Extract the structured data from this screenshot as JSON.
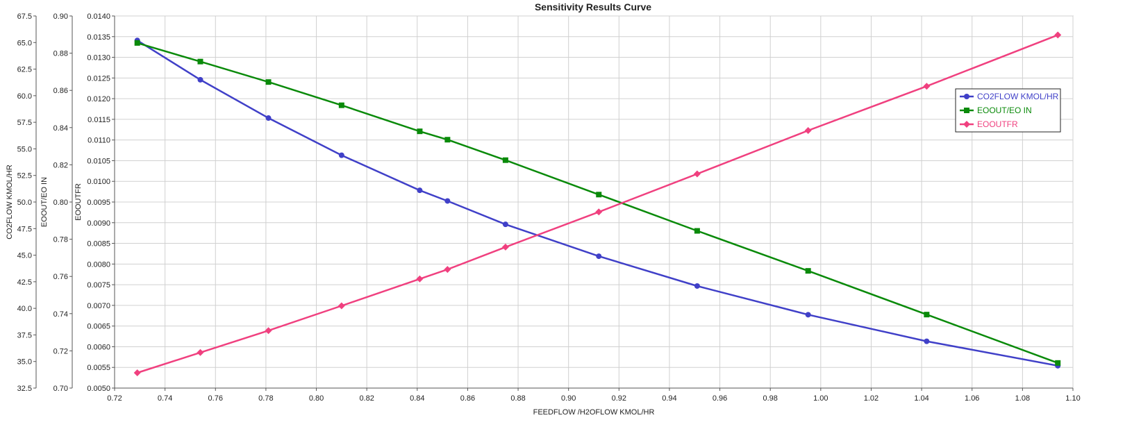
{
  "chart_data": {
    "type": "line",
    "title": "Sensitivity Results Curve",
    "xlabel": "FEEDFLOW /H2OFLOW KMOL/HR",
    "xlim": [
      0.72,
      1.1
    ],
    "x_ticks": [
      "0.72",
      "0.74",
      "0.76",
      "0.78",
      "0.80",
      "0.82",
      "0.84",
      "0.86",
      "0.88",
      "0.90",
      "0.92",
      "0.94",
      "0.96",
      "0.98",
      "1.00",
      "1.02",
      "1.04",
      "1.06",
      "1.08",
      "1.10"
    ],
    "x": [
      0.729,
      0.754,
      0.781,
      0.81,
      0.841,
      0.852,
      0.875,
      0.912,
      0.951,
      0.995,
      1.042,
      1.094
    ],
    "grid": true,
    "legend_position": "right",
    "axes": [
      {
        "id": "co2",
        "label": "CO2FLOW KMOL/HR",
        "ylim": [
          32.5,
          67.5
        ],
        "ticks": [
          "32.5",
          "35.0",
          "37.5",
          "40.0",
          "42.5",
          "45.0",
          "47.5",
          "50.0",
          "52.5",
          "55.0",
          "57.5",
          "60.0",
          "62.5",
          "65.0",
          "67.5"
        ]
      },
      {
        "id": "eoratio",
        "label": "EOOUT/EO IN",
        "ylim": [
          0.7,
          0.9
        ],
        "ticks": [
          "0.70",
          "0.72",
          "0.74",
          "0.76",
          "0.78",
          "0.80",
          "0.82",
          "0.84",
          "0.86",
          "0.88",
          "0.90"
        ]
      },
      {
        "id": "eooutfr",
        "label": "EOOUTFR",
        "ylim": [
          0.005,
          0.014
        ],
        "ticks": [
          "0.0050",
          "0.0055",
          "0.0060",
          "0.0065",
          "0.0070",
          "0.0075",
          "0.0080",
          "0.0085",
          "0.0090",
          "0.0095",
          "0.0100",
          "0.0105",
          "0.0110",
          "0.0115",
          "0.0120",
          "0.0125",
          "0.0130",
          "0.0135",
          "0.0140"
        ]
      }
    ],
    "series": [
      {
        "name": "CO2FLOW KMOL/HR",
        "axis": "co2",
        "color": "#4040c8",
        "marker": "circle",
        "values": [
          65.2,
          61.5,
          57.9,
          54.4,
          51.1,
          50.1,
          47.9,
          44.9,
          42.1,
          39.4,
          36.9,
          34.6
        ]
      },
      {
        "name": "EOOUT/EO IN",
        "axis": "eoratio",
        "color": "#0a8a0a",
        "marker": "square",
        "values": [
          0.8855,
          0.8755,
          0.8645,
          0.852,
          0.838,
          0.8335,
          0.8225,
          0.804,
          0.7845,
          0.763,
          0.7395,
          0.7135
        ]
      },
      {
        "name": "EOOUTFR",
        "axis": "eooutfr",
        "color": "#f0407f",
        "marker": "diamond",
        "values": [
          0.00537,
          0.00586,
          0.00639,
          0.00699,
          0.00764,
          0.00787,
          0.00841,
          0.00926,
          0.01018,
          0.01123,
          0.0123,
          0.01354
        ]
      }
    ]
  }
}
